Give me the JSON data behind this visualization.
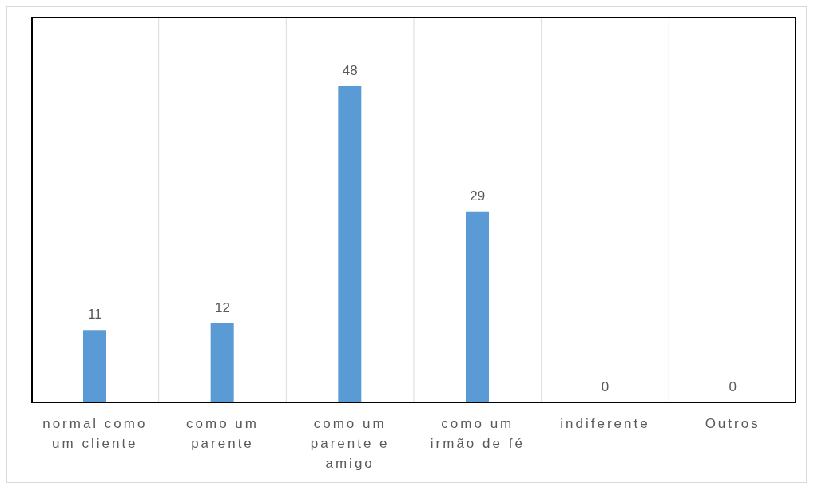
{
  "chart_data": {
    "type": "bar",
    "categories": [
      "normal como um cliente",
      "como um parente",
      "como um parente e amigo",
      "como um irmão de fé",
      "indiferente",
      "Outros"
    ],
    "values": [
      11,
      12,
      48,
      29,
      0,
      0
    ],
    "color": "#5b9bd5",
    "data_labels": true,
    "grid": "x"
  }
}
